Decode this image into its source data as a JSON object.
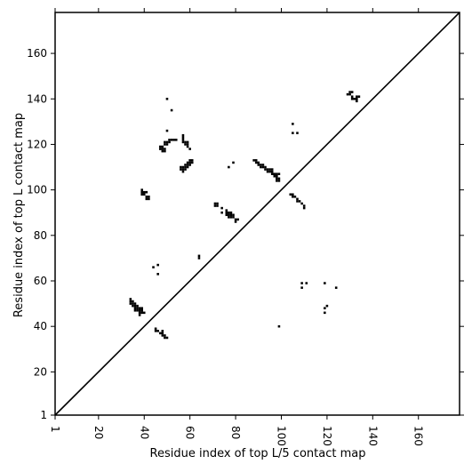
{
  "chart_data": {
    "type": "scatter",
    "title": "",
    "xlabel": "Residue index of top L/5 contact map",
    "ylabel": "Residue index of top L contact map",
    "xlim": [
      1,
      178
    ],
    "ylim": [
      1,
      178
    ],
    "xticks": [
      1,
      20,
      40,
      60,
      80,
      100,
      120,
      140,
      160
    ],
    "yticks": [
      1,
      20,
      40,
      60,
      80,
      100,
      120,
      140,
      160
    ],
    "grid": false,
    "diagonal": true,
    "marker": "square",
    "color": "#000000",
    "series": [
      {
        "points": [
          [
            34,
            52
          ],
          [
            34,
            51
          ],
          [
            34,
            50
          ],
          [
            35,
            51
          ],
          [
            35,
            50
          ],
          [
            35,
            49
          ],
          [
            36,
            50
          ],
          [
            36,
            49
          ],
          [
            36,
            48
          ],
          [
            36,
            47
          ],
          [
            37,
            49
          ],
          [
            37,
            48
          ],
          [
            37,
            47
          ],
          [
            38,
            48
          ],
          [
            38,
            47
          ],
          [
            38,
            46
          ],
          [
            38,
            45
          ],
          [
            39,
            48
          ],
          [
            39,
            47
          ],
          [
            39,
            46
          ],
          [
            40,
            46
          ],
          [
            39,
            100
          ],
          [
            39,
            99
          ],
          [
            39,
            98
          ],
          [
            40,
            99
          ],
          [
            40,
            98
          ],
          [
            41,
            99
          ],
          [
            41,
            97
          ],
          [
            41,
            96
          ],
          [
            42,
            97
          ],
          [
            42,
            96
          ],
          [
            44,
            66
          ],
          [
            46,
            67
          ],
          [
            46,
            63
          ],
          [
            45,
            39
          ],
          [
            45,
            38
          ],
          [
            46,
            38
          ],
          [
            47,
            37
          ],
          [
            48,
            38
          ],
          [
            48,
            37
          ],
          [
            48,
            36
          ],
          [
            49,
            36
          ],
          [
            49,
            35
          ],
          [
            50,
            35
          ],
          [
            47,
            119
          ],
          [
            47,
            118
          ],
          [
            48,
            119
          ],
          [
            48,
            118
          ],
          [
            48,
            117
          ],
          [
            49,
            121
          ],
          [
            49,
            120
          ],
          [
            49,
            118
          ],
          [
            49,
            117
          ],
          [
            50,
            121
          ],
          [
            50,
            120
          ],
          [
            51,
            122
          ],
          [
            51,
            121
          ],
          [
            52,
            122
          ],
          [
            53,
            122
          ],
          [
            54,
            122
          ],
          [
            50,
            140
          ],
          [
            52,
            135
          ],
          [
            50,
            126
          ],
          [
            57,
            124
          ],
          [
            57,
            123
          ],
          [
            57,
            122
          ],
          [
            57,
            121
          ],
          [
            58,
            121
          ],
          [
            58,
            120
          ],
          [
            59,
            121
          ],
          [
            59,
            120
          ],
          [
            59,
            119
          ],
          [
            60,
            118
          ],
          [
            56,
            110
          ],
          [
            56,
            109
          ],
          [
            57,
            110
          ],
          [
            57,
            109
          ],
          [
            57,
            108
          ],
          [
            58,
            111
          ],
          [
            58,
            110
          ],
          [
            58,
            109
          ],
          [
            59,
            112
          ],
          [
            59,
            111
          ],
          [
            59,
            110
          ],
          [
            60,
            113
          ],
          [
            60,
            112
          ],
          [
            60,
            111
          ],
          [
            61,
            113
          ],
          [
            61,
            112
          ],
          [
            64,
            71
          ],
          [
            64,
            70
          ],
          [
            71,
            94
          ],
          [
            71,
            93
          ],
          [
            72,
            94
          ],
          [
            72,
            93
          ],
          [
            74,
            92
          ],
          [
            74,
            90
          ],
          [
            76,
            91
          ],
          [
            76,
            90
          ],
          [
            76,
            89
          ],
          [
            77,
            90
          ],
          [
            77,
            89
          ],
          [
            77,
            88
          ],
          [
            78,
            90
          ],
          [
            78,
            89
          ],
          [
            78,
            88
          ],
          [
            79,
            89
          ],
          [
            79,
            88
          ],
          [
            80,
            87
          ],
          [
            81,
            87
          ],
          [
            80,
            86
          ],
          [
            77,
            110
          ],
          [
            79,
            112
          ],
          [
            88,
            113
          ],
          [
            89,
            113
          ],
          [
            89,
            112
          ],
          [
            90,
            112
          ],
          [
            90,
            111
          ],
          [
            91,
            111
          ],
          [
            91,
            110
          ],
          [
            92,
            111
          ],
          [
            92,
            110
          ],
          [
            93,
            110
          ],
          [
            93,
            109
          ],
          [
            94,
            109
          ],
          [
            94,
            108
          ],
          [
            95,
            109
          ],
          [
            95,
            108
          ],
          [
            96,
            109
          ],
          [
            96,
            108
          ],
          [
            96,
            107
          ],
          [
            97,
            107
          ],
          [
            97,
            106
          ],
          [
            98,
            107
          ],
          [
            98,
            106
          ],
          [
            98,
            105
          ],
          [
            98,
            104
          ],
          [
            99,
            107
          ],
          [
            99,
            105
          ],
          [
            99,
            104
          ],
          [
            99,
            40
          ],
          [
            104,
            98
          ],
          [
            105,
            98
          ],
          [
            105,
            97
          ],
          [
            106,
            97
          ],
          [
            107,
            96
          ],
          [
            107,
            95
          ],
          [
            108,
            95
          ],
          [
            109,
            94
          ],
          [
            110,
            93
          ],
          [
            110,
            92
          ],
          [
            105,
            129
          ],
          [
            105,
            125
          ],
          [
            107,
            125
          ],
          [
            109,
            59
          ],
          [
            109,
            57
          ],
          [
            111,
            59
          ],
          [
            119,
            59
          ],
          [
            119,
            48
          ],
          [
            119,
            46
          ],
          [
            120,
            49
          ],
          [
            124,
            57
          ],
          [
            129,
            142
          ],
          [
            130,
            143
          ],
          [
            130,
            142
          ],
          [
            131,
            143
          ],
          [
            131,
            141
          ],
          [
            131,
            140
          ],
          [
            132,
            140
          ],
          [
            133,
            141
          ],
          [
            133,
            140
          ],
          [
            133,
            139
          ],
          [
            134,
            141
          ]
        ]
      }
    ]
  }
}
